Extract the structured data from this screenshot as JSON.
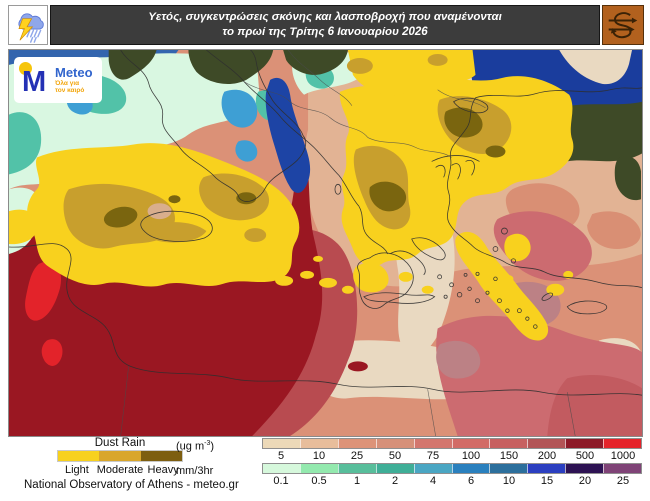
{
  "header": {
    "title_line1": "Υετός, συγκεντρώσεις σκόνης και λασποβροχή που αναμένονται",
    "title_line2": "το πρωί της Τρίτης 6 Ιανουαρίου 2026",
    "left_icon": "storm-cloud",
    "right_icon": "dust-wind-swirl",
    "bar_color": "#3c3c3c",
    "right_icon_bg": "#b2611e"
  },
  "logo": {
    "brand": "Meteo",
    "tagline_line1": "Όλα για",
    "tagline_line2": "τον καιρό",
    "m_color": "#2431b5",
    "dot_color": "#f6c50b"
  },
  "dust_rain_legend": {
    "title": "Dust Rain",
    "classes": [
      {
        "label": "Light",
        "color": "#F7D11E"
      },
      {
        "label": "Moderate",
        "color": "#D9A62B"
      },
      {
        "label": "Heavy",
        "color": "#7D5E10"
      }
    ]
  },
  "dust_scale": {
    "unit_prefix": "(ug m",
    "unit_sup": "-3",
    "unit_suffix": ")",
    "ticks": [
      "5",
      "10",
      "25",
      "50",
      "75",
      "100",
      "150",
      "200",
      "500",
      "1000"
    ],
    "colors": [
      "#ECD9B8",
      "#E8BD9B",
      "#DD9378",
      "#D69079",
      "#D3766E",
      "#D26B66",
      "#C76060",
      "#B25456",
      "#8D1A28",
      "#E5232A"
    ]
  },
  "rain_scale": {
    "unit": "mm/3hr",
    "ticks": [
      "0.1",
      "0.5",
      "1",
      "2",
      "4",
      "6",
      "10",
      "15",
      "20",
      "25"
    ],
    "colors": [
      "#D6F8DC",
      "#93E9AE",
      "#58BE9B",
      "#3FAE97",
      "#4AA6C3",
      "#2A80BE",
      "#2C6F9C",
      "#2B3FC0",
      "#2D1253",
      "#7F4377"
    ]
  },
  "attribution": "National Observatory of Athens - meteo.gr",
  "chart_data": [
    {
      "type": "heatmap",
      "name": "dust-concentration-colorbar",
      "unit": "ug m-3",
      "tick_values": [
        5,
        10,
        25,
        50,
        75,
        100,
        150,
        200,
        500,
        1000
      ],
      "colors": [
        "#ECD9B8",
        "#E8BD9B",
        "#DD9378",
        "#D69079",
        "#D3766E",
        "#D26B66",
        "#C76060",
        "#B25456",
        "#8D1A28",
        "#E5232A"
      ]
    },
    {
      "type": "heatmap",
      "name": "precipitation-colorbar",
      "unit": "mm/3hr",
      "tick_values": [
        0.1,
        0.5,
        1,
        2,
        4,
        6,
        10,
        15,
        20,
        25
      ],
      "colors": [
        "#D6F8DC",
        "#93E9AE",
        "#58BE9B",
        "#3FAE97",
        "#4AA6C3",
        "#2A80BE",
        "#2C6F9C",
        "#2B3FC0",
        "#2D1253",
        "#7F4377"
      ]
    },
    {
      "type": "heatmap",
      "name": "dust-rain-intensity-legend",
      "categories": [
        "Light",
        "Moderate",
        "Heavy"
      ],
      "colors": [
        "#F7D11E",
        "#D9A62B",
        "#7D5E10"
      ]
    }
  ]
}
